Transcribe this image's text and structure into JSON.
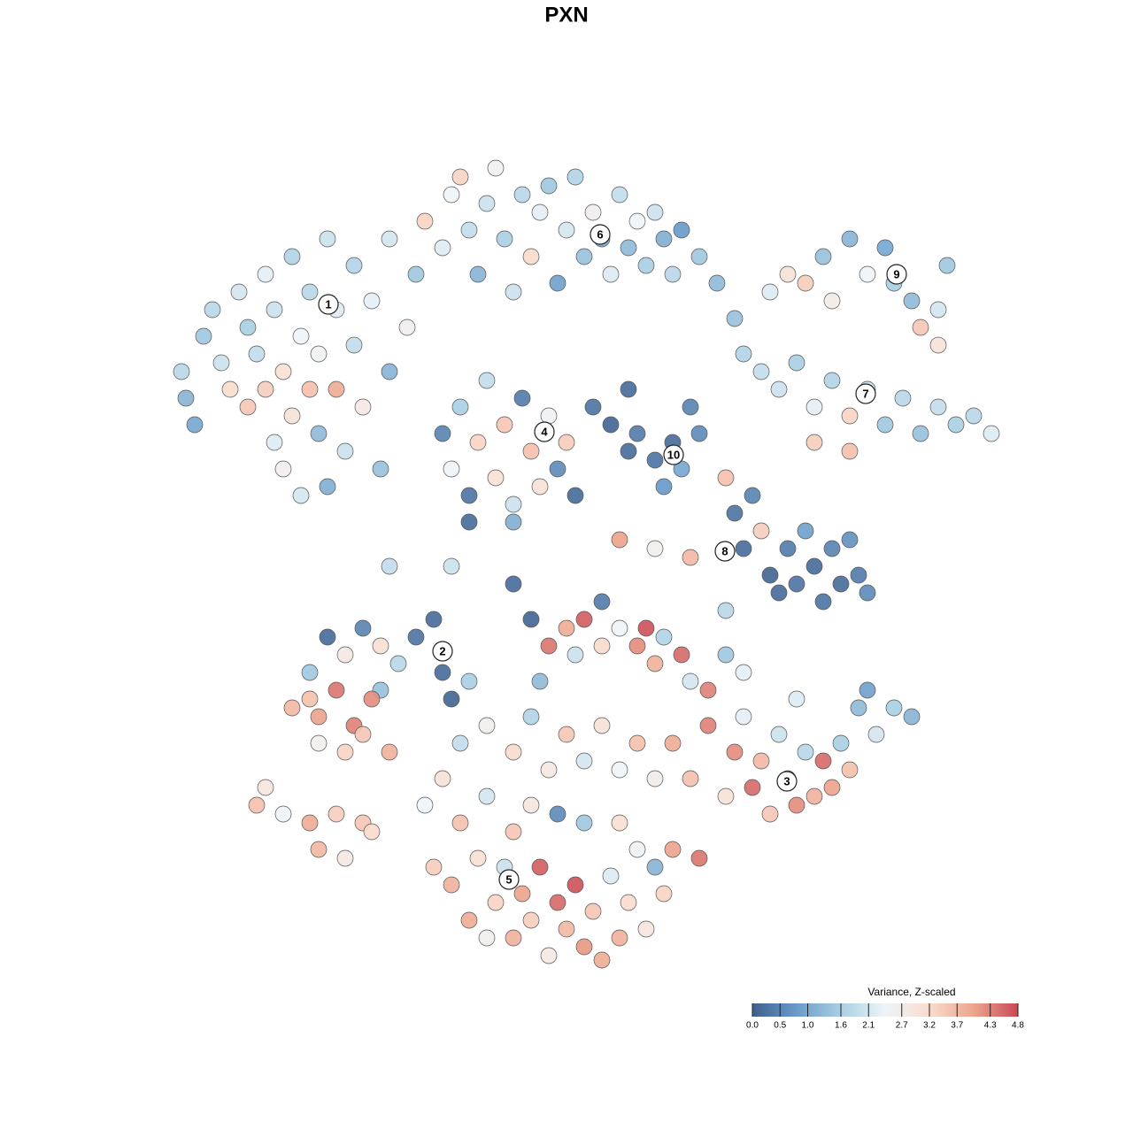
{
  "chart_data": {
    "type": "scatter",
    "title": "PXN",
    "x": [
      20.5,
      21,
      22,
      23,
      24,
      25,
      26,
      27,
      28,
      28,
      29,
      30,
      30,
      31,
      31,
      32,
      32,
      33,
      33,
      34,
      34,
      35,
      35,
      36,
      36,
      37,
      37,
      38,
      38,
      39,
      40,
      40,
      41,
      42,
      43,
      44,
      44,
      46,
      47,
      48,
      50,
      51,
      52,
      53,
      54,
      55,
      56,
      57,
      58,
      59,
      60,
      61,
      62,
      63,
      64,
      65,
      66,
      67,
      68,
      69,
      70,
      71,
      72,
      73,
      74,
      75,
      76,
      77,
      79,
      81,
      83,
      84,
      87,
      89,
      91,
      93,
      94,
      96,
      98,
      100,
      101,
      103,
      104,
      106,
      106,
      107,
      86,
      88,
      90,
      92,
      94,
      96,
      98,
      100,
      102,
      104,
      106,
      108,
      110,
      112,
      92,
      96,
      50,
      51,
      52,
      53,
      54,
      55,
      56,
      57,
      58,
      59,
      60,
      61,
      62,
      63,
      64,
      65,
      53,
      58,
      67,
      69,
      71,
      72,
      74,
      75,
      76,
      77,
      78,
      79,
      71,
      82,
      83,
      84,
      85,
      86,
      87,
      88,
      89,
      90,
      91,
      92,
      93,
      94,
      95,
      96,
      97,
      98,
      82,
      78,
      74,
      70,
      58,
      60,
      62,
      64,
      65,
      66,
      68,
      70,
      72,
      73,
      74,
      75,
      77,
      78,
      80,
      82,
      84,
      68,
      61,
      37,
      39,
      41,
      43,
      45,
      47,
      49,
      50,
      51,
      53,
      44,
      51,
      43,
      35,
      33,
      36,
      38,
      40,
      41,
      42,
      44,
      39,
      36,
      35,
      29,
      30,
      32,
      35,
      36,
      38,
      39,
      41,
      42,
      76,
      78,
      79,
      80,
      82,
      83,
      84,
      85,
      86,
      87,
      88,
      89,
      90,
      91,
      92,
      93,
      94,
      95,
      96,
      97,
      99,
      101,
      103,
      98,
      90,
      48,
      49,
      50,
      51,
      52,
      53,
      54,
      55,
      55,
      56,
      57,
      58,
      58,
      59,
      60,
      61,
      62,
      63,
      64,
      65,
      66,
      67,
      68,
      69,
      70,
      71,
      72,
      73,
      74,
      75,
      76,
      52,
      55,
      58,
      60,
      62,
      64,
      66,
      68,
      70,
      72,
      74,
      66,
      63,
      70,
      60
    ],
    "y": [
      86,
      83,
      80,
      90,
      93,
      87,
      84,
      95,
      91,
      82,
      88,
      97,
      84,
      78,
      93,
      86,
      75,
      99,
      81,
      90,
      72,
      84,
      95,
      79,
      88,
      101,
      73,
      84,
      93,
      77,
      98,
      89,
      82,
      94,
      75,
      101,
      86,
      91,
      97,
      103,
      100,
      106,
      108,
      102,
      97,
      105,
      109,
      101,
      95,
      106,
      99,
      104,
      107,
      96,
      102,
      108,
      99,
      104,
      101,
      97,
      106,
      100,
      103,
      98,
      104,
      101,
      97,
      102,
      99,
      96,
      92,
      88,
      95,
      97,
      96,
      99,
      94,
      101,
      97,
      100,
      96,
      94,
      91,
      93,
      89,
      98,
      86,
      84,
      87,
      82,
      85,
      81,
      84,
      80,
      83,
      79,
      82,
      80,
      81,
      79,
      78,
      77,
      79,
      75,
      82,
      72,
      78,
      85,
      74,
      80,
      71,
      83,
      77,
      73,
      81,
      75,
      78,
      72,
      69,
      69,
      82,
      80,
      84,
      79,
      76,
      73,
      78,
      75,
      82,
      79,
      77,
      74,
      70,
      66,
      72,
      68,
      63,
      61,
      66,
      62,
      68,
      64,
      60,
      66,
      62,
      67,
      63,
      61,
      59,
      65,
      66,
      67,
      62,
      58,
      55,
      57,
      54,
      58,
      55,
      57,
      55,
      57,
      53,
      56,
      54,
      51,
      50,
      54,
      52,
      60,
      51,
      56,
      54,
      57,
      55,
      53,
      56,
      58,
      52,
      49,
      51,
      64,
      64,
      50,
      49,
      48,
      47,
      50,
      46,
      45,
      49,
      43,
      43,
      44,
      52,
      37,
      39,
      36,
      35,
      32,
      36,
      31,
      35,
      34,
      44,
      40,
      31,
      46,
      38,
      43,
      47,
      39,
      42,
      36,
      45,
      40,
      37,
      43,
      38,
      42,
      39,
      44,
      41,
      48,
      45,
      48,
      47,
      50,
      49,
      37,
      30,
      40,
      28,
      35,
      24,
      31,
      22,
      38,
      26,
      30,
      34,
      22,
      27,
      24,
      30,
      20,
      26,
      23,
      28,
      21,
      25,
      19.5,
      29,
      22,
      26,
      32,
      23,
      30,
      27,
      32,
      44,
      46,
      43,
      47,
      41,
      45,
      42,
      46,
      41,
      44,
      40,
      35,
      36,
      35,
      37
    ],
    "values": [
      1.8,
      1.2,
      1.0,
      1.5,
      1.8,
      2.0,
      3.2,
      2.1,
      1.6,
      3.5,
      1.9,
      2.3,
      3.4,
      2.2,
      2.0,
      3.1,
      2.6,
      1.7,
      3.0,
      2.4,
      2.1,
      3.6,
      1.8,
      1.3,
      2.5,
      2.0,
      1.1,
      3.9,
      2.2,
      2.0,
      1.7,
      1.9,
      2.8,
      2.3,
      1.4,
      2.1,
      1.2,
      2.6,
      1.5,
      3.3,
      2.2,
      2.4,
      3.3,
      1.9,
      1.2,
      2.0,
      2.5,
      1.6,
      2.0,
      1.8,
      3.2,
      2.3,
      1.5,
      0.9,
      2.1,
      1.7,
      1.4,
      2.6,
      1.0,
      2.2,
      1.9,
      1.3,
      2.4,
      1.6,
      2.0,
      1.1,
      1.8,
      0.8,
      1.5,
      1.3,
      1.4,
      1.7,
      2.2,
      3.0,
      3.4,
      1.4,
      2.7,
      1.2,
      2.4,
      1.0,
      1.6,
      1.3,
      3.5,
      2.1,
      3.0,
      1.5,
      1.9,
      2.0,
      1.6,
      2.3,
      1.7,
      3.3,
      2.0,
      1.5,
      1.8,
      1.4,
      1.9,
      1.6,
      1.8,
      2.2,
      3.4,
      3.6,
      0.5,
      2.4,
      1.6,
      0.3,
      3.3,
      1.9,
      3.1,
      3.5,
      2.0,
      0.4,
      3.6,
      3.0,
      2.5,
      0.6,
      3.4,
      0.2,
      0.2,
      1.1,
      0.3,
      0.1,
      0.2,
      0.4,
      0.3,
      0.8,
      0.2,
      1.0,
      0.5,
      0.6,
      0.2,
      3.6,
      0.3,
      0.2,
      0.5,
      3.4,
      0.1,
      0.2,
      0.4,
      0.3,
      0.9,
      0.2,
      0.3,
      0.5,
      0.2,
      0.7,
      0.4,
      0.6,
      1.8,
      3.7,
      2.6,
      4.0,
      0.2,
      0.1,
      4.4,
      3.9,
      2.0,
      4.6,
      3.2,
      2.4,
      4.2,
      4.7,
      3.8,
      1.7,
      4.5,
      2.1,
      4.3,
      1.5,
      2.3,
      0.4,
      1.3,
      0.2,
      2.8,
      0.5,
      3.1,
      1.8,
      0.3,
      0.2,
      0.2,
      0.1,
      1.6,
      1.9,
      2.0,
      1.4,
      3.6,
      3.7,
      4.0,
      4.4,
      4.3,
      3.5,
      4.2,
      3.8,
      3.3,
      2.6,
      1.5,
      3.6,
      2.9,
      2.4,
      3.9,
      3.7,
      3.4,
      2.8,
      3.5,
      3.2,
      3.9,
      3.6,
      4.4,
      4.3,
      3.0,
      4.2,
      2.3,
      4.5,
      3.7,
      3.5,
      2.0,
      4.6,
      4.2,
      1.8,
      3.8,
      4.5,
      4.0,
      1.6,
      3.6,
      1.3,
      2.1,
      1.6,
      1.2,
      0.9,
      2.2,
      2.4,
      3.4,
      3.0,
      3.8,
      3.6,
      3.9,
      3.1,
      2.6,
      2.1,
      3.3,
      2.0,
      3.5,
      3.8,
      4.0,
      3.4,
      4.6,
      2.8,
      4.5,
      3.7,
      4.7,
      4.1,
      3.5,
      3.9,
      2.2,
      3.8,
      3.2,
      2.5,
      2.9,
      1.2,
      3.3,
      4.0,
      1.9,
      2.6,
      3.2,
      1.7,
      2.8,
      3.5,
      2.1,
      3.0,
      2.4,
      3.6,
      2.7,
      1.5,
      0.6,
      3.1,
      2.9
    ],
    "cluster_labels": {
      "text": [
        "1",
        "2",
        "3",
        "4",
        "5",
        "6",
        "7",
        "8",
        "9",
        "10"
      ],
      "x": [
        37.1,
        50,
        88.9,
        61.5,
        57.5,
        67.8,
        97.8,
        81.9,
        101.3,
        76.1
      ],
      "y": [
        93.6,
        54.4,
        39.7,
        79.2,
        28.6,
        101.5,
        83.5,
        65.7,
        97,
        76.6
      ]
    },
    "colorbar": {
      "title": "Variance, Z-scaled",
      "lim": [
        0,
        4.8
      ],
      "ticks": [
        {
          "value": 0,
          "label": "0.0"
        },
        0.5,
        {
          "value": 1,
          "label": "1.0"
        },
        1.6,
        2.1,
        2.7,
        3.2,
        3.7,
        4.3,
        4.8
      ],
      "colors": [
        "#3f5f8c",
        "#6a9bc9",
        "#a9cfe3",
        "#eef4f8",
        "#f9dccd",
        "#eda58d",
        "#c84a55"
      ]
    }
  }
}
